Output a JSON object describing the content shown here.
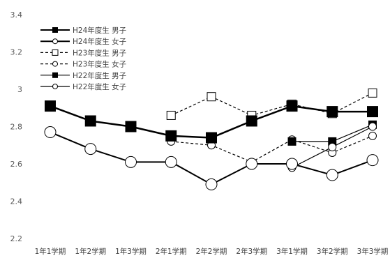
{
  "chart_data": {
    "type": "line",
    "categories": [
      "1年1学期",
      "1年2学期",
      "1年3学期",
      "2年1学期",
      "2年2学期",
      "2年3学期",
      "3年1学期",
      "3年2学期",
      "3年3学期"
    ],
    "ylim": [
      2.2,
      3.4
    ],
    "yticks": [
      "2.2",
      "2.4",
      "2.6",
      "2.8",
      "3",
      "3.2",
      "3.4"
    ],
    "grid": false,
    "legend_position": "top-left",
    "series": [
      {
        "name": "H24年度生 男子",
        "values": [
          2.91,
          2.83,
          2.8,
          2.75,
          2.74,
          2.83,
          2.91,
          2.88,
          2.88
        ],
        "color": "#000000",
        "line": "solid",
        "width": 2.5,
        "marker": "square-filled"
      },
      {
        "name": "H24年度生 女子",
        "values": [
          2.77,
          2.68,
          2.61,
          2.61,
          2.49,
          2.6,
          2.6,
          2.54,
          2.62
        ],
        "color": "#000000",
        "line": "solid",
        "width": 2,
        "marker": "circle-open"
      },
      {
        "name": "H23年度生 男子",
        "values": [
          null,
          null,
          null,
          2.86,
          2.96,
          2.86,
          2.92,
          2.87,
          2.98
        ],
        "color": "#000000",
        "line": "dashed",
        "width": 1.2,
        "marker": "square-open"
      },
      {
        "name": "H23年度生 女子",
        "values": [
          null,
          null,
          null,
          2.72,
          2.7,
          2.61,
          2.73,
          2.66,
          2.75
        ],
        "color": "#000000",
        "line": "dashed",
        "width": 1.2,
        "marker": "circle-open-small"
      },
      {
        "name": "H22年度生 男子",
        "values": [
          null,
          null,
          null,
          null,
          null,
          null,
          2.72,
          2.72,
          2.81
        ],
        "color": "#000000",
        "line": "solid",
        "width": 1.2,
        "marker": "square-filled-small"
      },
      {
        "name": "H22年度生 女子",
        "values": [
          null,
          null,
          null,
          null,
          null,
          null,
          2.58,
          2.69,
          2.8
        ],
        "color": "#000000",
        "line": "solid",
        "width": 1.2,
        "marker": "circle-open-small"
      }
    ]
  }
}
